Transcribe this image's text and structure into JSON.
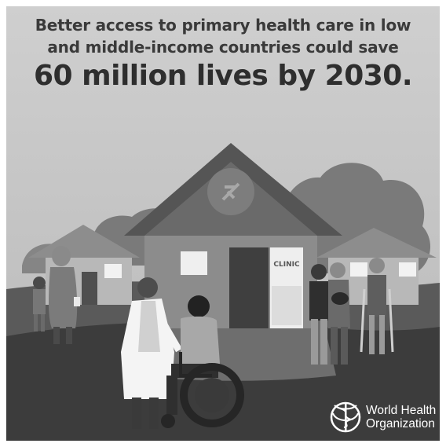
{
  "headline": {
    "line1": "Better access to primary health care in low",
    "line2": "and middle-income countries could save",
    "line3": "60 million lives by 2030."
  },
  "clinic_sign": "CLINIC",
  "logo": {
    "line1": "World Health",
    "line2": "Organization"
  },
  "colors": {
    "sky": "#c9c9c9",
    "ground_dark": "#4a4a4a",
    "roof": "#555555",
    "wall": "#8c8c8c",
    "text": "#333333"
  }
}
